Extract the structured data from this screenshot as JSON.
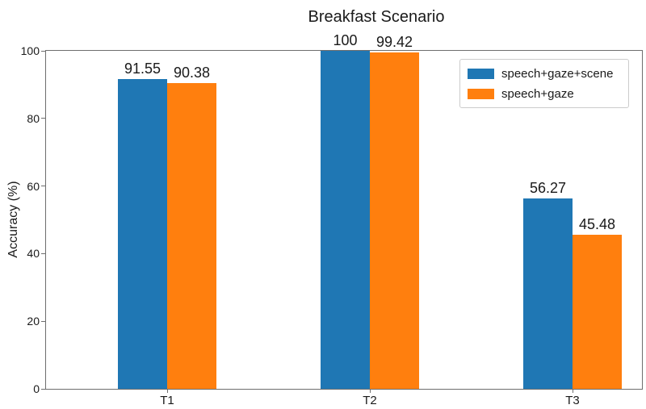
{
  "chart_data": {
    "type": "bar",
    "title": "Breakfast Scenario",
    "categories": [
      "T1",
      "T2",
      "T3"
    ],
    "series": [
      {
        "name": "speech+gaze+scene",
        "color": "#1f77b4",
        "values": [
          91.55,
          100,
          56.27
        ],
        "value_labels": [
          "91.55",
          "100",
          "56.27"
        ]
      },
      {
        "name": "speech+gaze",
        "color": "#ff7f0e",
        "values": [
          90.38,
          99.42,
          45.48
        ],
        "value_labels": [
          "90.38",
          "99.42",
          "45.48"
        ]
      }
    ],
    "xlabel": "",
    "ylabel": "Accuracy (%)",
    "ylim": [
      0,
      100
    ],
    "yticks": [
      0,
      20,
      40,
      60,
      80,
      100
    ],
    "grid": false,
    "legend_position": "upper right",
    "axis_color": "#6e6e6e",
    "background_color": "#ffffff"
  }
}
